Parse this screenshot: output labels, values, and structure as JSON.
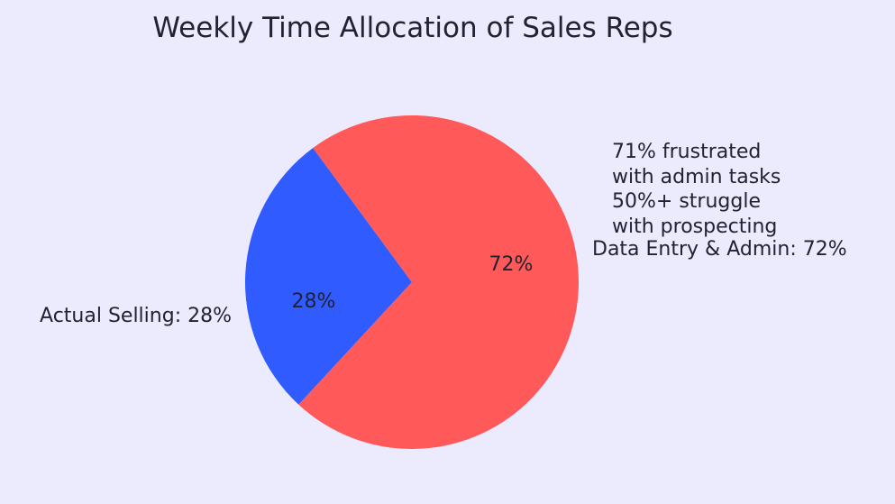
{
  "chart_data": {
    "type": "pie",
    "title": "Weekly Time Allocation of Sales Reps",
    "slices": [
      {
        "name": "Actual Selling",
        "value": 28,
        "outer_label": "Actual Selling: 28%",
        "inner_label": "28%",
        "color": "#2F5BFF"
      },
      {
        "name": "Data Entry & Admin",
        "value": 72,
        "outer_label": "Data Entry & Admin: 72%",
        "inner_label": "72%",
        "color": "#FF5959"
      }
    ],
    "annotation": [
      "71% frustrated",
      "with admin tasks",
      "50%+ struggle",
      "with prospecting"
    ],
    "background": "#ECEBFE"
  }
}
